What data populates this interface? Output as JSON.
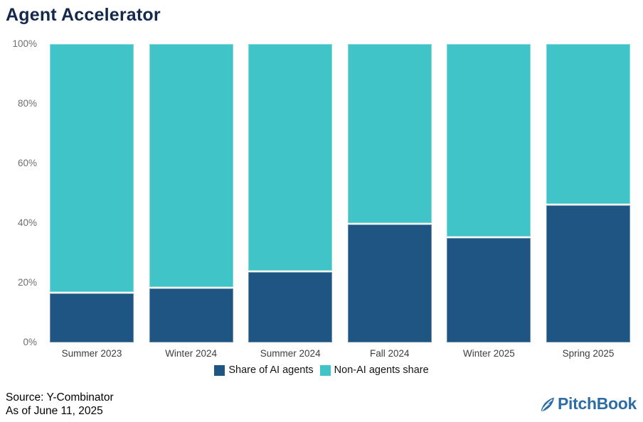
{
  "title": "Agent Accelerator",
  "chart_data": {
    "type": "bar",
    "stacked": true,
    "title": "Agent Accelerator",
    "categories": [
      "Summer 2023",
      "Winter 2024",
      "Summer 2024",
      "Fall 2024",
      "Winter 2025",
      "Spring 2025"
    ],
    "series": [
      {
        "name": "Share of AI agents",
        "color": "#1F5582",
        "values": [
          17,
          18.5,
          24,
          40,
          35.5,
          46.5
        ]
      },
      {
        "name": "Non-AI agents share",
        "color": "#41C4C8",
        "values": [
          83,
          81.5,
          76,
          60,
          64.5,
          53.5
        ]
      }
    ],
    "xlabel": "",
    "ylabel": "",
    "ylim": [
      0,
      100
    ],
    "ytick_labels_top_to_bottom": [
      "100%",
      "80%",
      "60%",
      "40%",
      "20%",
      "0%"
    ],
    "grid": false,
    "legend_position": "bottom"
  },
  "footer": {
    "source_line1": "Source: Y-Combinator",
    "source_line2": "As of June 11, 2025"
  },
  "branding": {
    "logo_text": "PitchBook",
    "logo_color": "#2E6DA4"
  }
}
